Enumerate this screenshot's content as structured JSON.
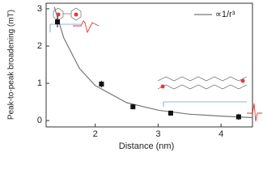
{
  "chart_data": {
    "type": "scatter",
    "x_label": "Distance (nm)",
    "y_label": "Peak-to-peak broadening (mT)",
    "xlim": [
      1.22,
      4.5
    ],
    "xticks": [
      2,
      3,
      4
    ],
    "ylim": [
      -0.17,
      3.15
    ],
    "yticks": [
      0,
      1,
      2,
      3
    ],
    "series": [
      {
        "name": "data",
        "color": "#111111",
        "x": [
          1.4,
          2.1,
          2.6,
          3.2,
          4.28
        ],
        "values": [
          2.65,
          0.98,
          0.37,
          0.2,
          0.1
        ],
        "errors": [
          0.15,
          0.09,
          0.07,
          0.07,
          0.08
        ]
      }
    ],
    "fit": {
      "name": "∝1/r³",
      "color": "#777777",
      "x": [
        1.35,
        1.5,
        1.75,
        2,
        2.5,
        3,
        3.5,
        4,
        4.5
      ],
      "values": [
        3.05,
        2.22,
        1.4,
        0.94,
        0.48,
        0.28,
        0.17,
        0.12,
        0.08
      ]
    }
  }
}
